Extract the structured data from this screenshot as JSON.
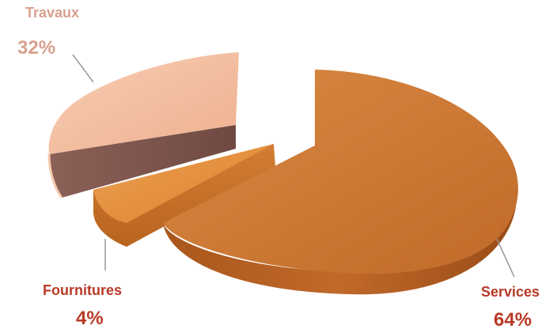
{
  "chart_data": {
    "type": "pie",
    "style": "3d-exploded",
    "slices": [
      {
        "label": "Services",
        "value": 64,
        "value_label": "64%",
        "color": "#c9742f"
      },
      {
        "label": "Fournitures",
        "value": 4,
        "value_label": "4%",
        "color": "#e0893c"
      },
      {
        "label": "Travaux",
        "value": 32,
        "value_label": "32%",
        "color": "#f2b99a"
      }
    ],
    "label_colors": {
      "Services": "#b83a26",
      "Fournitures": "#b83a26",
      "Travaux": "#d9a08e"
    }
  }
}
